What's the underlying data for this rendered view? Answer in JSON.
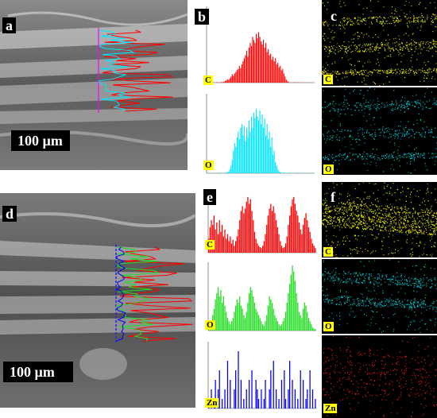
{
  "figure": {
    "panel_labels": {
      "a": "a",
      "b": "b",
      "c": "c",
      "d": "d",
      "e": "e",
      "f": "f"
    },
    "scale_bars": {
      "top": "100 µm",
      "bottom": "100 µm"
    },
    "elements": {
      "carbon": "C",
      "oxygen": "O",
      "zinc": "Zn"
    },
    "colors": {
      "carbon": "#ff0000",
      "oxygen_b": "#00e5ff",
      "oxygen_e": "#22dd22",
      "zinc": "#0000ff",
      "map_c": "#ffff00",
      "map_o": "#00d8e0",
      "map_zn": "#ff2020"
    }
  },
  "chart_data": [
    {
      "type": "bar",
      "panel": "b",
      "series": [
        {
          "name": "C",
          "values": [
            0,
            0,
            1,
            0,
            1,
            2,
            1,
            1,
            3,
            2,
            1,
            2,
            4,
            3,
            6,
            10,
            15,
            22,
            18,
            28,
            40,
            55,
            45,
            60,
            70,
            82,
            90,
            110,
            95,
            120,
            140,
            160,
            180,
            210,
            170,
            230,
            260,
            240,
            300,
            280,
            260,
            320,
            290,
            330,
            300,
            270,
            250,
            280,
            230,
            260,
            200,
            220,
            180,
            190,
            150,
            170,
            140,
            160,
            120,
            130,
            100,
            110,
            80,
            90,
            60,
            40,
            20,
            10,
            4,
            2,
            1,
            2,
            1,
            3,
            2,
            1,
            2,
            1,
            1,
            2,
            1,
            0,
            1,
            0,
            2,
            1,
            0,
            0,
            1,
            0
          ]
        }
      ],
      "ylim": [
        0,
        500
      ]
    },
    {
      "type": "bar",
      "panel": "b",
      "series": [
        {
          "name": "O",
          "values": [
            0,
            0,
            1,
            0,
            0,
            1,
            0,
            1,
            0,
            1,
            0,
            2,
            0,
            1,
            1,
            0,
            2,
            3,
            5,
            10,
            20,
            35,
            60,
            80,
            70,
            95,
            110,
            90,
            120,
            130,
            100,
            125,
            85,
            120,
            95,
            140,
            110,
            150,
            120,
            160,
            145,
            170,
            150,
            140,
            165,
            130,
            155,
            120,
            145,
            100,
            130,
            90,
            110,
            70,
            95,
            50,
            60,
            30,
            20,
            10,
            5,
            3,
            2,
            1,
            2,
            1,
            0,
            1,
            2,
            0,
            1,
            0,
            1,
            1,
            0,
            2,
            1,
            0,
            1,
            0,
            1,
            0,
            0,
            1,
            0,
            1,
            0,
            0,
            1,
            0
          ]
        }
      ],
      "ylim": [
        0,
        210
      ]
    },
    {
      "type": "bar",
      "panel": "e",
      "series": [
        {
          "name": "C",
          "values": [
            30,
            55,
            70,
            60,
            80,
            50,
            65,
            40,
            70,
            45,
            60,
            35,
            50,
            30,
            40,
            25,
            35,
            20,
            28,
            15,
            25,
            35,
            50,
            70,
            90,
            100,
            85,
            95,
            110,
            120,
            105,
            115,
            90,
            70,
            45,
            30,
            20,
            15,
            12,
            10,
            15,
            25,
            40,
            60,
            80,
            95,
            105,
            90,
            100,
            85,
            70,
            55,
            40,
            25,
            15,
            10,
            12,
            20,
            35,
            60,
            80,
            100,
            115,
            120,
            105,
            90,
            80,
            65,
            50,
            40,
            60,
            75,
            85,
            70,
            55,
            45,
            30,
            20,
            15,
            10
          ]
        }
      ],
      "ylim": [
        0,
        130
      ]
    },
    {
      "type": "bar",
      "panel": "e",
      "series": [
        {
          "name": "O",
          "values": [
            5,
            10,
            15,
            25,
            35,
            50,
            60,
            70,
            55,
            65,
            45,
            55,
            40,
            30,
            20,
            15,
            10,
            15,
            20,
            30,
            40,
            50,
            45,
            55,
            40,
            35,
            25,
            20,
            30,
            45,
            60,
            70,
            65,
            55,
            45,
            35,
            30,
            25,
            20,
            15,
            10,
            8,
            15,
            25,
            40,
            55,
            50,
            45,
            35,
            25,
            20,
            15,
            10,
            8,
            10,
            15,
            20,
            30,
            45,
            60,
            75,
            90,
            105,
            95,
            80,
            60,
            45,
            30,
            25,
            20,
            35,
            45,
            40,
            30,
            20,
            15,
            10,
            5,
            3,
            2
          ]
        }
      ],
      "ylim": [
        0,
        110
      ]
    },
    {
      "type": "bar",
      "panel": "e",
      "series": [
        {
          "name": "Zn",
          "values": [
            1,
            0,
            2,
            0,
            1,
            3,
            0,
            2,
            4,
            0,
            1,
            0,
            2,
            0,
            5,
            0,
            3,
            0,
            0,
            2,
            4,
            0,
            6,
            0,
            3,
            0,
            1,
            0,
            2,
            0,
            3,
            0,
            4,
            0,
            0,
            3,
            2,
            1,
            0,
            2,
            0,
            1,
            3,
            0,
            0,
            2,
            4,
            0,
            5,
            0,
            2,
            0,
            1,
            0,
            3,
            0,
            4,
            1,
            0,
            2,
            5,
            0,
            3,
            0,
            2,
            0,
            1,
            0,
            4,
            0,
            3,
            0,
            1,
            2,
            0,
            4,
            0,
            2,
            0,
            1
          ]
        }
      ],
      "ylim": [
        0,
        7
      ]
    }
  ]
}
